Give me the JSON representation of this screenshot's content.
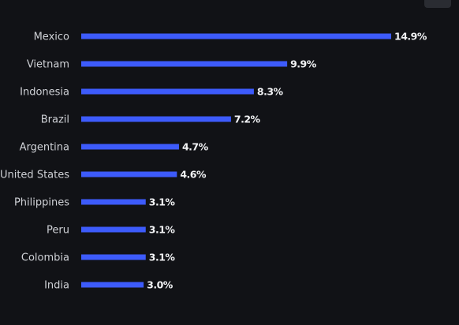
{
  "chart_data": {
    "type": "hbar",
    "categories": [
      "Mexico",
      "Vietnam",
      "Indonesia",
      "Brazil",
      "Argentina",
      "United States",
      "Philippines",
      "Peru",
      "Colombia",
      "India"
    ],
    "values": [
      14.9,
      9.9,
      8.3,
      7.2,
      4.7,
      4.6,
      3.1,
      3.1,
      3.1,
      3.0
    ],
    "value_labels": [
      "14.9%",
      "9.9%",
      "8.3%",
      "7.2%",
      "4.7%",
      "4.6%",
      "3.1%",
      "3.1%",
      "3.1%",
      "3.0%"
    ],
    "color": "#3d5bfb"
  }
}
